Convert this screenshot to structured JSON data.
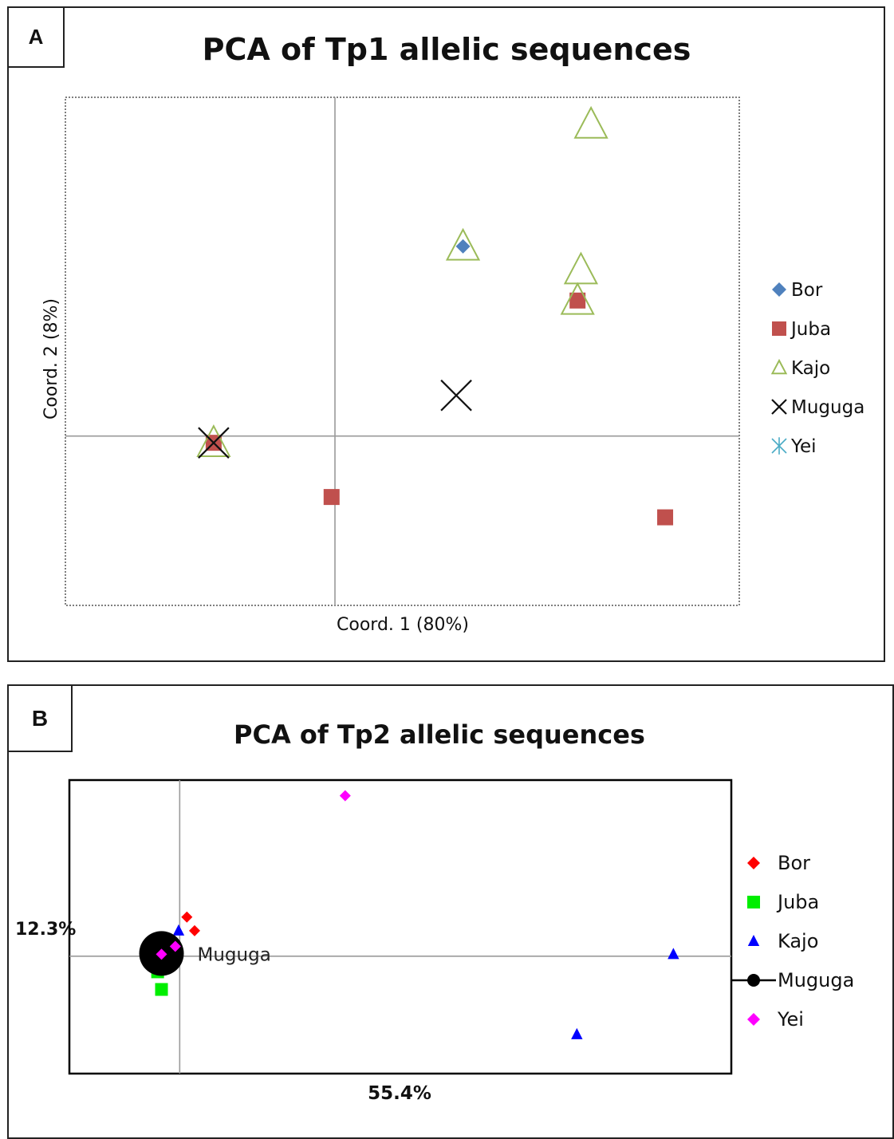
{
  "chart_data": [
    {
      "panel_label": "A",
      "type": "scatter",
      "title": "PCA of Tp1 allelic sequences",
      "xlabel": "Coord. 1 (80%)",
      "ylabel": "Coord. 2 (8%)",
      "xlim": [
        -0.4,
        0.6
      ],
      "ylim": [
        -0.25,
        0.5
      ],
      "grid": false,
      "legend_position": "right",
      "series": [
        {
          "name": "Bor",
          "marker": "diamond",
          "color": "#4F81BD",
          "points": [
            [
              0.19,
              0.28
            ]
          ]
        },
        {
          "name": "Juba",
          "marker": "square",
          "color": "#C0504D",
          "points": [
            [
              -0.18,
              -0.01
            ],
            [
              -0.005,
              -0.09
            ],
            [
              0.36,
              0.2
            ],
            [
              0.49,
              -0.12
            ]
          ]
        },
        {
          "name": "Kajo",
          "marker": "triangle-open",
          "color": "#9BBB59",
          "points": [
            [
              -0.18,
              -0.01
            ],
            [
              0.19,
              0.28
            ],
            [
              0.38,
              0.46
            ],
            [
              0.365,
              0.245
            ],
            [
              0.36,
              0.2
            ]
          ]
        },
        {
          "name": "Muguga",
          "marker": "x",
          "color": "#111111",
          "points": [
            [
              -0.18,
              -0.01
            ],
            [
              0.18,
              0.06
            ]
          ]
        },
        {
          "name": "Yei",
          "marker": "asterisk",
          "color": "#4BACC6",
          "points": []
        }
      ]
    },
    {
      "panel_label": "B",
      "type": "scatter",
      "title": "PCA of Tp2 allelic sequences",
      "xlabel": "55.4%",
      "ylabel": "12.3%",
      "xlim": [
        -0.2,
        1.0
      ],
      "ylim": [
        -0.3,
        0.45
      ],
      "grid": false,
      "legend_position": "right",
      "series": [
        {
          "name": "Bor",
          "marker": "diamond",
          "color": "#FF0000",
          "points": [
            [
              0.013,
              0.1
            ],
            [
              0.027,
              0.065
            ]
          ]
        },
        {
          "name": "Juba",
          "marker": "square",
          "color": "#00EE00",
          "points": [
            [
              -0.04,
              -0.04
            ],
            [
              -0.033,
              -0.085
            ]
          ]
        },
        {
          "name": "Kajo",
          "marker": "triangle",
          "color": "#0000FF",
          "points": [
            [
              -0.002,
              0.065
            ],
            [
              -0.033,
              -0.02
            ],
            [
              0.895,
              0.005
            ],
            [
              0.72,
              -0.2
            ]
          ]
        },
        {
          "name": "Muguga",
          "marker": "circle",
          "color": "#000000",
          "points": [
            [
              -0.033,
              0.007
            ]
          ],
          "point_labels": [
            "Muguga"
          ]
        },
        {
          "name": "Yei",
          "marker": "diamond",
          "color": "#FF00FF",
          "points": [
            [
              -0.033,
              0.005
            ],
            [
              -0.008,
              0.025
            ],
            [
              0.3,
              0.41
            ]
          ]
        }
      ]
    }
  ]
}
